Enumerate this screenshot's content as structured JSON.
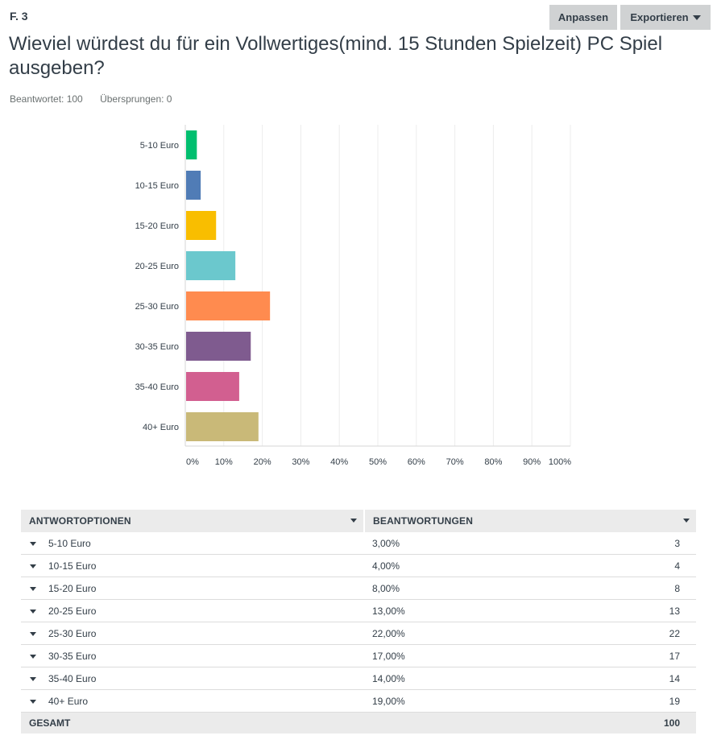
{
  "question": {
    "number": "F. 3",
    "title": "Wieviel würdest du für ein Vollwertiges(mind. 15 Stunden Spielzeit) PC Spiel ausgeben?",
    "answered": "Beantwortet: 100",
    "skipped": "Übersprungen: 0"
  },
  "toolbar": {
    "customize_label": "Anpassen",
    "export_label": "Exportieren"
  },
  "chart_data": {
    "type": "bar",
    "orientation": "horizontal",
    "categories": [
      "5-10 Euro",
      "10-15 Euro",
      "15-20 Euro",
      "20-25 Euro",
      "25-30 Euro",
      "30-35 Euro",
      "35-40 Euro",
      "40+ Euro"
    ],
    "values": [
      3,
      4,
      8,
      13,
      22,
      17,
      14,
      19
    ],
    "colors": [
      "#00bf6f",
      "#507cb6",
      "#f9be00",
      "#6bc8cd",
      "#ff8b4f",
      "#7f5b8f",
      "#d25f90",
      "#c9b978"
    ],
    "xlim": [
      0,
      100
    ],
    "xticks": [
      "0%",
      "10%",
      "20%",
      "30%",
      "40%",
      "50%",
      "60%",
      "70%",
      "80%",
      "90%",
      "100%"
    ],
    "grid": true
  },
  "table": {
    "headers": {
      "options": "ANTWORTOPTIONEN",
      "responses": "BEANTWORTUNGEN"
    },
    "rows": [
      {
        "label": "5-10 Euro",
        "percent": "3,00%",
        "count": "3"
      },
      {
        "label": "10-15 Euro",
        "percent": "4,00%",
        "count": "4"
      },
      {
        "label": "15-20 Euro",
        "percent": "8,00%",
        "count": "8"
      },
      {
        "label": "20-25 Euro",
        "percent": "13,00%",
        "count": "13"
      },
      {
        "label": "25-30 Euro",
        "percent": "22,00%",
        "count": "22"
      },
      {
        "label": "30-35 Euro",
        "percent": "17,00%",
        "count": "17"
      },
      {
        "label": "35-40 Euro",
        "percent": "14,00%",
        "count": "14"
      },
      {
        "label": "40+ Euro",
        "percent": "19,00%",
        "count": "19"
      }
    ],
    "total": {
      "label": "GESAMT",
      "count": "100"
    }
  }
}
